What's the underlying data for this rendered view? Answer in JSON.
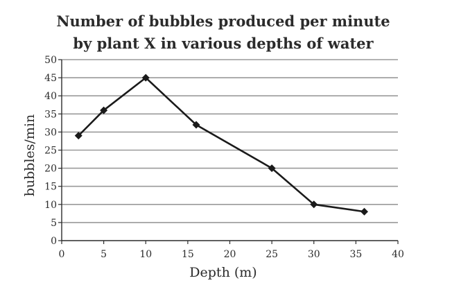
{
  "chart_data": {
    "type": "line",
    "title_lines": [
      "Number of bubbles produced per minute",
      "by plant X in various depths of water"
    ],
    "xlabel": "Depth (m)",
    "ylabel": "bubbles/min",
    "xlim": [
      0,
      40
    ],
    "ylim": [
      0,
      50
    ],
    "xticks": [
      0,
      5,
      10,
      15,
      20,
      25,
      30,
      35,
      40
    ],
    "yticks": [
      0,
      5,
      10,
      15,
      20,
      25,
      30,
      35,
      40,
      45,
      50
    ],
    "grid": true,
    "series": [
      {
        "name": "plant X",
        "marker": "diamond",
        "x": [
          2,
          5,
          10,
          16,
          25,
          30,
          36
        ],
        "y": [
          29,
          36,
          45,
          32,
          20,
          10,
          8
        ]
      }
    ],
    "colors": {
      "line": "#1a1a1a",
      "grid": "#9a9a9a",
      "text": "#2b2b2b"
    }
  }
}
